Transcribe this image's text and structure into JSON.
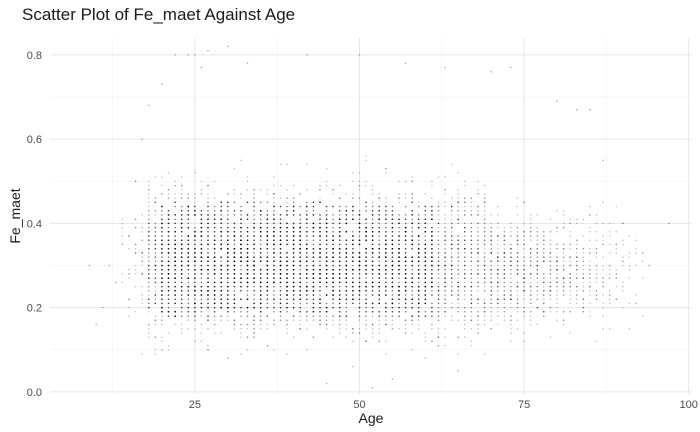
{
  "chart_data": {
    "type": "scatter",
    "title": "Scatter Plot of Fe_maet Against Age",
    "xlabel": "Age",
    "ylabel": "Fe_maet",
    "xlim": [
      3,
      100.5
    ],
    "ylim": [
      -0.005,
      0.84
    ],
    "x_ticks": [
      25,
      50,
      75,
      100
    ],
    "x_tick_labels": [
      "25",
      "50",
      "75",
      "100"
    ],
    "y_ticks": [
      0.0,
      0.2,
      0.4,
      0.6,
      0.8
    ],
    "y_tick_labels": [
      "0.0",
      "0.2",
      "0.4",
      "0.6",
      "0.8"
    ],
    "grid": true,
    "legend": "none",
    "point_color": "#000000",
    "description_of_points": "Dense cloud of small translucent points; integer ages from about 10 to 97, Fe_maet roughly 0.0 to 0.82, heaviest density for ages 20-60 and Fe_maet 0.15-0.45",
    "points_sample": [
      {
        "x": 9,
        "y": 0.3
      },
      {
        "x": 10,
        "y": 0.16
      },
      {
        "x": 11,
        "y": 0.2
      },
      {
        "x": 12,
        "y": 0.3
      },
      {
        "x": 13,
        "y": 0.26
      },
      {
        "x": 14,
        "y": 0.35
      },
      {
        "x": 15,
        "y": 0.22
      },
      {
        "x": 16,
        "y": 0.5
      },
      {
        "x": 17,
        "y": 0.6
      },
      {
        "x": 18,
        "y": 0.68
      },
      {
        "x": 20,
        "y": 0.73
      },
      {
        "x": 22,
        "y": 0.8
      },
      {
        "x": 24,
        "y": 0.8
      },
      {
        "x": 25,
        "y": 0.8
      },
      {
        "x": 26,
        "y": 0.77
      },
      {
        "x": 27,
        "y": 0.81
      },
      {
        "x": 30,
        "y": 0.82
      },
      {
        "x": 33,
        "y": 0.78
      },
      {
        "x": 42,
        "y": 0.8
      },
      {
        "x": 50,
        "y": 0.8
      },
      {
        "x": 57,
        "y": 0.78
      },
      {
        "x": 63,
        "y": 0.77
      },
      {
        "x": 70,
        "y": 0.76
      },
      {
        "x": 73,
        "y": 0.77
      },
      {
        "x": 80,
        "y": 0.69
      },
      {
        "x": 83,
        "y": 0.67
      },
      {
        "x": 85,
        "y": 0.67
      },
      {
        "x": 87,
        "y": 0.55
      },
      {
        "x": 90,
        "y": 0.4
      },
      {
        "x": 92,
        "y": 0.21
      },
      {
        "x": 94,
        "y": 0.3
      },
      {
        "x": 97,
        "y": 0.4
      },
      {
        "x": 45,
        "y": 0.02
      },
      {
        "x": 55,
        "y": 0.03
      },
      {
        "x": 52,
        "y": 0.01
      },
      {
        "x": 65,
        "y": 0.05
      },
      {
        "x": 30,
        "y": 0.08
      },
      {
        "x": 20,
        "y": 0.1
      }
    ]
  }
}
